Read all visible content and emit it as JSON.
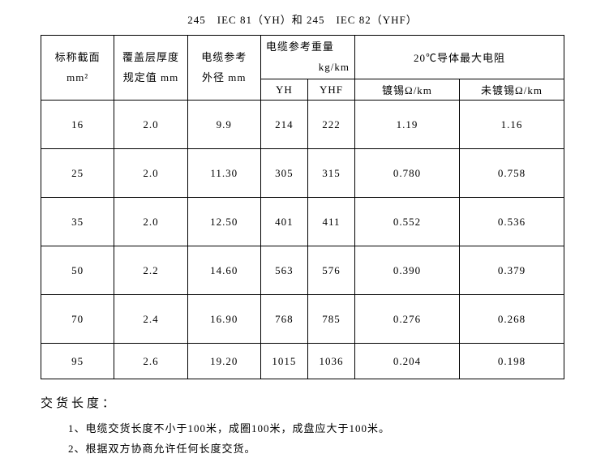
{
  "title": "245　IEC 81（YH）和 245　IEC 82（YHF）",
  "headers": {
    "col1_line1": "标称截面",
    "col1_line2": "mm²",
    "col2_line1": "覆盖层厚度",
    "col2_line2": "规定值 mm",
    "col3_line1": "电缆参考",
    "col3_line2": "外径 mm",
    "col45_line1": "电缆参考重量",
    "col45_line2": "kg/km",
    "col4_sub": "YH",
    "col5_sub": "YHF",
    "col67": "20℃导体最大电阻",
    "col6_sub": "镀锡Ω/km",
    "col7_sub": "未镀锡Ω/km"
  },
  "rows": [
    {
      "nominal": "16",
      "thickness": "2.0",
      "od": "9.9",
      "yh": "214",
      "yhf": "222",
      "tinned": "1.19",
      "untinned": "1.16"
    },
    {
      "nominal": "25",
      "thickness": "2.0",
      "od": "11.30",
      "yh": "305",
      "yhf": "315",
      "tinned": "0.780",
      "untinned": "0.758"
    },
    {
      "nominal": "35",
      "thickness": "2.0",
      "od": "12.50",
      "yh": "401",
      "yhf": "411",
      "tinned": "0.552",
      "untinned": "0.536"
    },
    {
      "nominal": "50",
      "thickness": "2.2",
      "od": "14.60",
      "yh": "563",
      "yhf": "576",
      "tinned": "0.390",
      "untinned": "0.379"
    },
    {
      "nominal": "70",
      "thickness": "2.4",
      "od": "16.90",
      "yh": "768",
      "yhf": "785",
      "tinned": "0.276",
      "untinned": "0.268"
    },
    {
      "nominal": "95",
      "thickness": "2.6",
      "od": "19.20",
      "yh": "1015",
      "yhf": "1036",
      "tinned": "0.204",
      "untinned": "0.198"
    }
  ],
  "delivery": {
    "title": "交货长度：",
    "note1": "1、电缆交货长度不小于100米，成圈100米，成盘应大于100米。",
    "note2": "2、根据双方协商允许任何长度交货。"
  }
}
